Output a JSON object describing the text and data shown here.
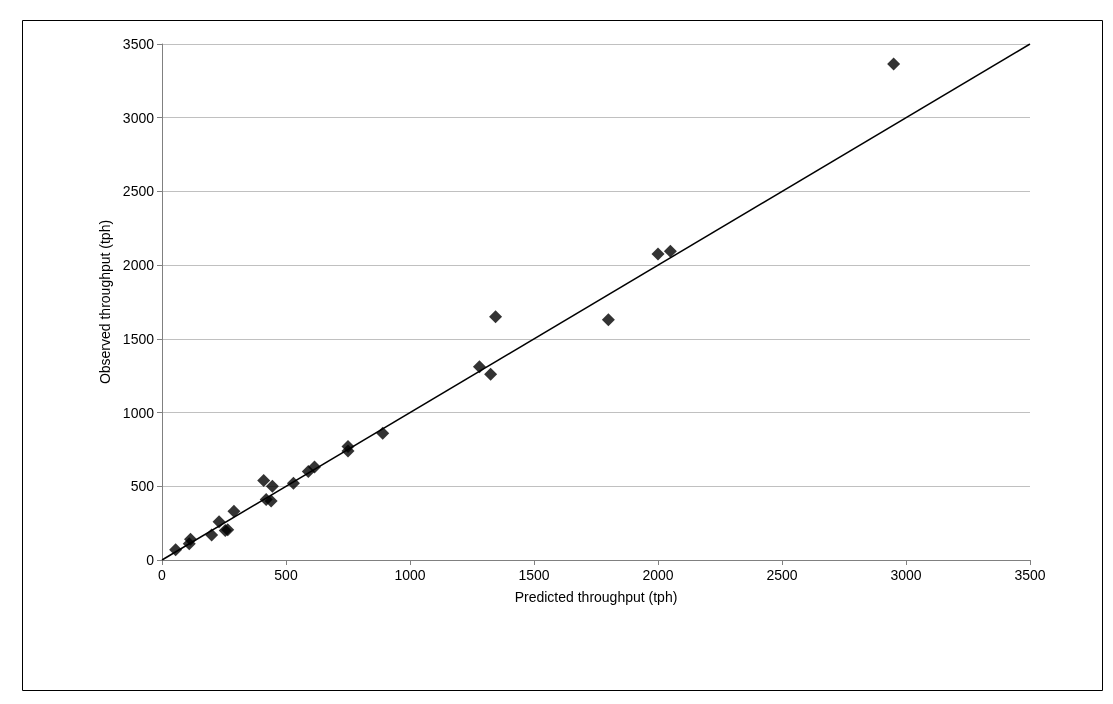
{
  "chart_data": {
    "type": "scatter",
    "xlabel": "Predicted throughput (tph)",
    "ylabel": "Observed throughput (tph)",
    "xlim": [
      0,
      3500
    ],
    "xticks": [
      0,
      500,
      1000,
      1500,
      2000,
      2500,
      3000,
      3500
    ],
    "ylim": [
      0,
      3500
    ],
    "yticks": [
      0,
      500,
      1000,
      1500,
      2000,
      2500,
      3000,
      3500
    ],
    "grid": "y",
    "marker": "diamond",
    "series": [
      {
        "color": "#000000",
        "x": [
          55,
          110,
          115,
          200,
          230,
          255,
          265,
          290,
          410,
          420,
          440,
          445,
          530,
          590,
          615,
          750,
          750,
          890,
          1280,
          1325,
          1345,
          1800,
          2000,
          2050,
          2950
        ],
        "values": [
          70,
          110,
          140,
          170,
          260,
          200,
          205,
          330,
          540,
          410,
          400,
          500,
          520,
          600,
          630,
          740,
          770,
          860,
          1310,
          1260,
          1650,
          1630,
          2075,
          2095,
          3365
        ]
      },
      {
        "type": "line",
        "color": "#000000",
        "x": [
          0,
          3500
        ],
        "values": [
          0,
          3500
        ],
        "marker": "none",
        "line_style": "solid"
      }
    ]
  }
}
